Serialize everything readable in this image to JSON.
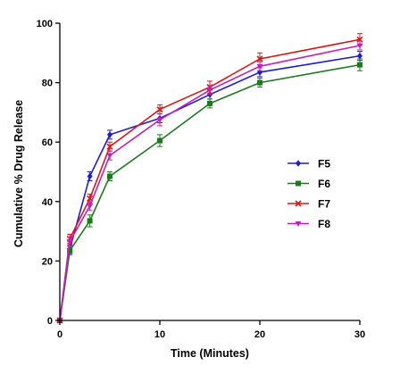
{
  "chart_data": {
    "type": "line",
    "title": "",
    "xlabel": "Time (Minutes)",
    "ylabel": "Cumulative % Drug Release",
    "xlim": [
      0,
      30
    ],
    "ylim": [
      0,
      100
    ],
    "x_ticks": [
      0,
      10,
      20,
      30
    ],
    "y_ticks": [
      0,
      20,
      40,
      60,
      80,
      100
    ],
    "grid": false,
    "legend_position": "right-center",
    "x": [
      0,
      1,
      3,
      5,
      10,
      15,
      20,
      30
    ],
    "series": [
      {
        "name": "F5",
        "color": "#1c1cd6",
        "marker": "diamond",
        "values": [
          0,
          24,
          48.5,
          62.5,
          68,
          76,
          83.5,
          89
        ],
        "errors": [
          0,
          1.5,
          1.5,
          1.5,
          1.5,
          1.5,
          1.5,
          1.5
        ]
      },
      {
        "name": "F6",
        "color": "#1b7a1b",
        "marker": "square",
        "values": [
          0,
          23.5,
          33.5,
          48.5,
          60.5,
          73,
          80,
          86
        ],
        "errors": [
          0,
          1.5,
          2,
          1.5,
          2,
          1.5,
          1.5,
          2
        ]
      },
      {
        "name": "F7",
        "color": "#e01414",
        "marker": "x",
        "values": [
          0,
          27.5,
          41,
          58.5,
          71,
          78.5,
          88,
          94.5
        ],
        "errors": [
          0,
          1.5,
          1.5,
          1.5,
          1.5,
          2,
          2,
          2
        ]
      },
      {
        "name": "F8",
        "color": "#c020c0",
        "marker": "triangle-down",
        "values": [
          0,
          26.5,
          38.5,
          55.5,
          67.5,
          77.5,
          85.5,
          92.5
        ],
        "errors": [
          0,
          1.5,
          1.5,
          1.5,
          2,
          1.5,
          1.5,
          1.5
        ]
      }
    ]
  }
}
